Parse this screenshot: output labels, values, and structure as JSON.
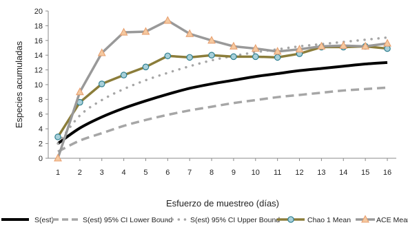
{
  "chart_data": {
    "type": "line",
    "title": "",
    "xlabel": "Esfuerzo de muestreo (días)",
    "ylabel": "Especies acumuladas",
    "x": [
      1,
      2,
      3,
      4,
      5,
      6,
      7,
      8,
      9,
      10,
      11,
      12,
      13,
      14,
      15,
      16
    ],
    "xlim": [
      1,
      16
    ],
    "ylim": [
      0,
      20
    ],
    "yticks": [
      0,
      2,
      4,
      6,
      8,
      10,
      12,
      14,
      16,
      18,
      20
    ],
    "grid": false,
    "legend_position": "bottom",
    "series": [
      {
        "name": "S(est)",
        "style": "solid-thick",
        "color": "#000000",
        "values": [
          2.0,
          4.1,
          5.6,
          6.8,
          7.8,
          8.7,
          9.5,
          10.1,
          10.6,
          11.1,
          11.5,
          11.9,
          12.2,
          12.5,
          12.8,
          13.0
        ]
      },
      {
        "name": "S(est) 95% CI Lower Bound",
        "style": "dashed",
        "color": "#a6a6a6",
        "values": [
          0.9,
          2.4,
          3.4,
          4.4,
          5.2,
          5.9,
          6.5,
          7.0,
          7.5,
          7.9,
          8.3,
          8.6,
          8.9,
          9.2,
          9.4,
          9.6
        ]
      },
      {
        "name": "S(est) 95% CI Upper Bound",
        "style": "dotted",
        "color": "#a6a6a6",
        "values": [
          2.0,
          5.8,
          7.9,
          9.4,
          10.6,
          11.6,
          12.5,
          13.3,
          13.9,
          14.4,
          14.8,
          15.2,
          15.5,
          15.8,
          16.1,
          16.4
        ]
      },
      {
        "name": "Chao 1 Mean",
        "style": "marker-circle",
        "color": "#8b7d3a",
        "marker_fill": "#a8d0da",
        "values": [
          2.9,
          7.6,
          10.1,
          11.3,
          12.4,
          13.9,
          13.7,
          14.0,
          13.8,
          13.8,
          13.7,
          14.2,
          15.1,
          15.1,
          15.2,
          14.9
        ]
      },
      {
        "name": "ACE Mean",
        "style": "marker-triangle",
        "color": "#999999",
        "marker_fill": "#f5c9a0",
        "values": [
          0.0,
          9.0,
          14.3,
          17.1,
          17.2,
          18.7,
          16.9,
          16.0,
          15.2,
          14.9,
          14.5,
          14.8,
          15.2,
          15.3,
          15.2,
          15.6
        ]
      }
    ]
  }
}
